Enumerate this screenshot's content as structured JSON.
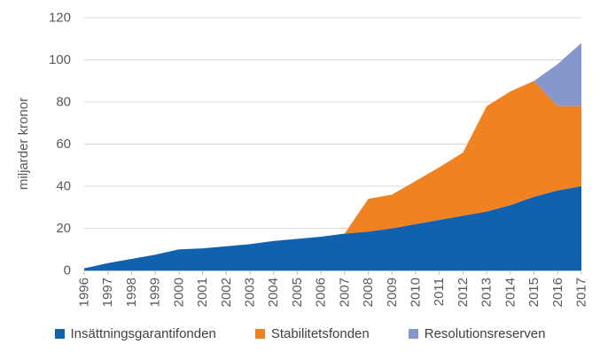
{
  "chart_data": {
    "type": "area",
    "stacked": true,
    "title": "",
    "xlabel": "",
    "ylabel": "miljarder kronor",
    "x": [
      1996,
      1997,
      1998,
      1999,
      2000,
      2001,
      2002,
      2003,
      2004,
      2005,
      2006,
      2007,
      2008,
      2009,
      2010,
      2011,
      2012,
      2013,
      2014,
      2015,
      2016,
      2017
    ],
    "series": [
      {
        "name": "Insättningsgarantifonden",
        "color": "#1062AF",
        "values": [
          1,
          3.5,
          5.5,
          7.5,
          10,
          10.5,
          11.5,
          12.5,
          14,
          15,
          16,
          17.5,
          18.5,
          20,
          22,
          24,
          26,
          28,
          31,
          35,
          38,
          40
        ]
      },
      {
        "name": "Stabilitetsfonden",
        "color": "#F08220",
        "values": [
          0,
          0,
          0,
          0,
          0,
          0,
          0,
          0,
          0,
          0,
          0,
          0,
          15.5,
          16,
          20.5,
          25,
          30,
          50,
          54,
          55,
          40,
          38
        ]
      },
      {
        "name": "Resolutionsreserven",
        "color": "#8597CD",
        "values": [
          0,
          0,
          0,
          0,
          0,
          0,
          0,
          0,
          0,
          0,
          0,
          0,
          0,
          0,
          0,
          0,
          0,
          0,
          0,
          0,
          20,
          30
        ]
      }
    ],
    "ylim": [
      0,
      120
    ],
    "yticks": [
      0,
      20,
      40,
      60,
      80,
      100,
      120
    ],
    "grid": true,
    "legend_position": "bottom",
    "colors": {
      "gridline": "#D9D9D9",
      "axis_line": "#BFBFBF",
      "tick_label": "#595959",
      "axis_title": "#595959",
      "legend_text": "#404040",
      "background": "#FFFFFF"
    }
  }
}
